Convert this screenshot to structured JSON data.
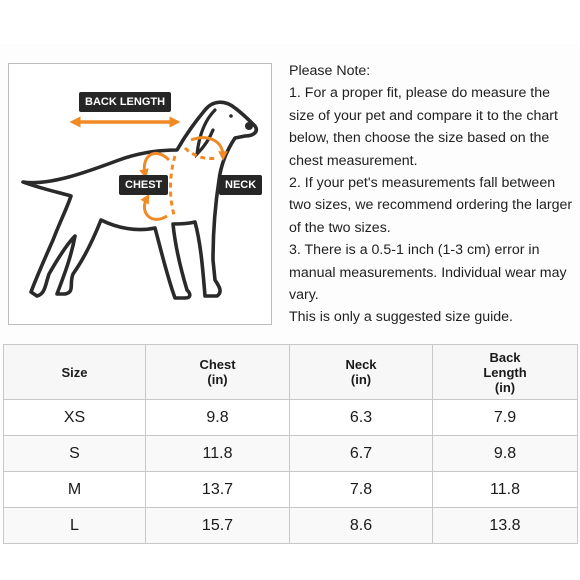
{
  "diagram": {
    "labels": {
      "back_length": "BACK LENGTH",
      "chest": "CHEST",
      "neck": "NECK"
    },
    "colors": {
      "arrow": "#f08a24",
      "tag": "#262626",
      "outline": "#2a2a2a"
    }
  },
  "note": {
    "heading": "Please Note:",
    "item1": "1. For a proper fit, please do measure the size of your pet and compare it to the chart below, then choose the size based on the chest measurement.",
    "item2": "2. If your pet's measurements fall between two sizes, we recommend ordering the larger of the two sizes.",
    "item3": "3. There is a 0.5-1 inch (1-3 cm) error in manual measurements. Individual wear may vary.",
    "footer": "This is only a suggested size guide."
  },
  "table": {
    "headers": {
      "size": "Size",
      "chest": [
        "Chest",
        "(in)"
      ],
      "neck": [
        "Neck",
        "(in)"
      ],
      "back": [
        "Back",
        "Length",
        "(in)"
      ]
    },
    "rows": [
      {
        "size": "XS",
        "chest": "9.8",
        "neck": "6.3",
        "back": "7.9"
      },
      {
        "size": "S",
        "chest": "11.8",
        "neck": "6.7",
        "back": "9.8"
      },
      {
        "size": "M",
        "chest": "13.7",
        "neck": "7.8",
        "back": "11.8"
      },
      {
        "size": "L",
        "chest": "15.7",
        "neck": "8.6",
        "back": "13.8"
      }
    ]
  }
}
